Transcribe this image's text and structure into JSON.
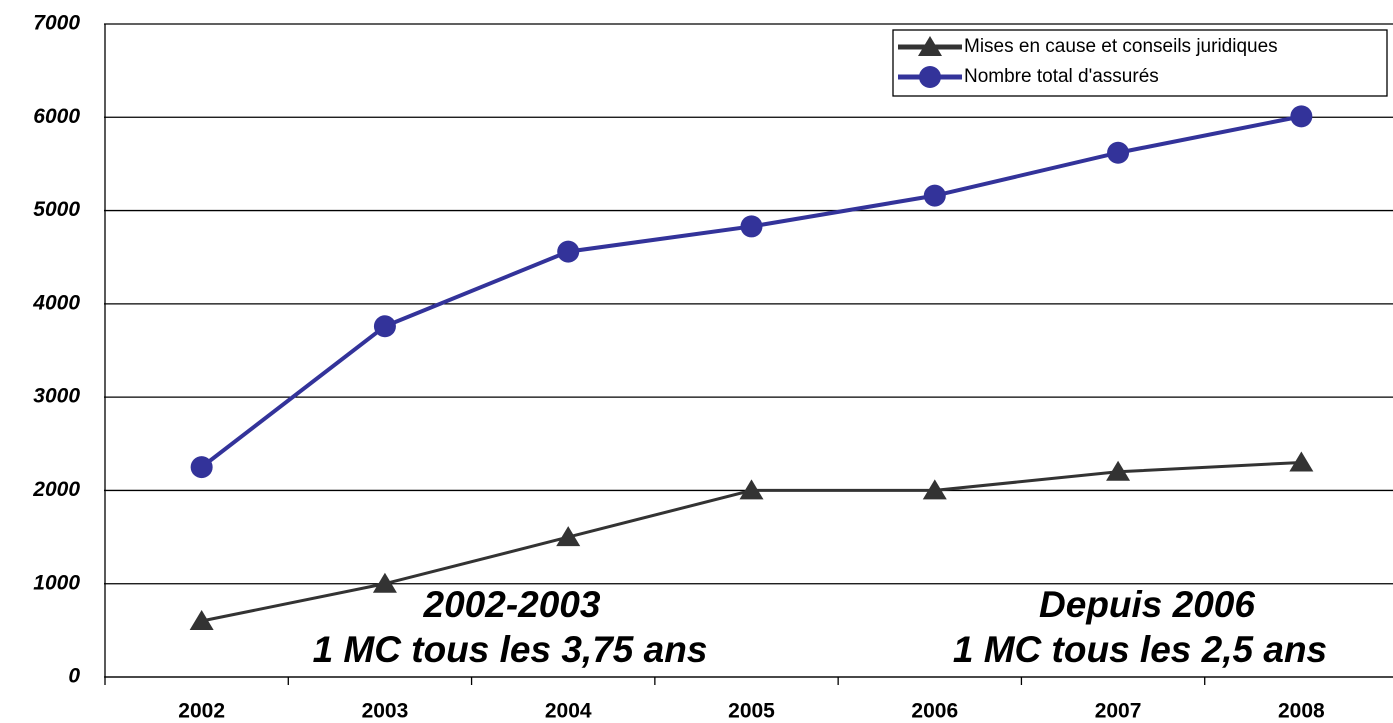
{
  "chart_data": {
    "type": "line",
    "categories": [
      "2002",
      "2003",
      "2004",
      "2005",
      "2006",
      "2007",
      "2008"
    ],
    "series": [
      {
        "name": "Mises en cause et conseils juridiques",
        "color": "#333333",
        "marker": "triangle",
        "values": [
          600,
          1000,
          1500,
          2000,
          2000,
          2200,
          2300
        ]
      },
      {
        "name": "Nombre total d'assurés",
        "color": "#33339a",
        "marker": "circle",
        "values": [
          2250,
          3760,
          4560,
          4830,
          5160,
          5620,
          6010
        ]
      }
    ],
    "ylim": [
      0,
      7000
    ],
    "yticks": [
      0,
      1000,
      2000,
      3000,
      4000,
      5000,
      6000,
      7000
    ],
    "grid": true,
    "legend": "top-right",
    "annotations": [
      "2002-2003",
      "1 MC tous les 3,75 ans",
      "Depuis 2006",
      "1 MC tous les 2,5 ans"
    ]
  }
}
